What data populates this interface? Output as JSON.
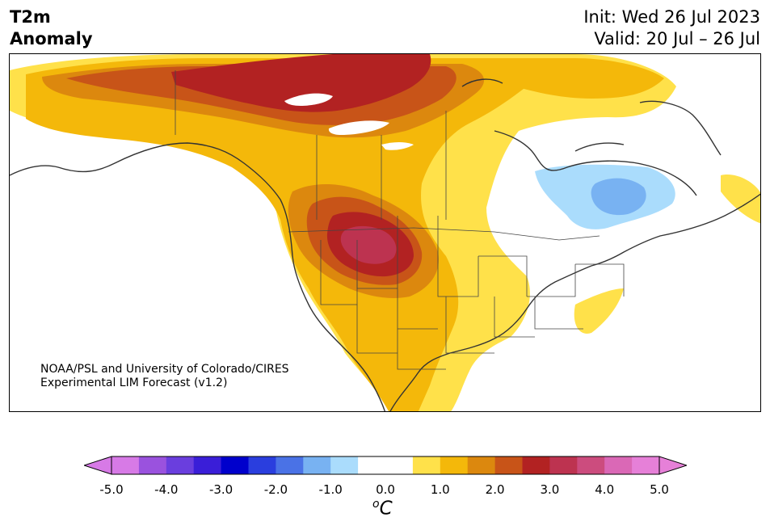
{
  "title": {
    "line1": "T2m",
    "line2": "Anomaly"
  },
  "init_label": "Init: Wed 26 Jul 2023",
  "valid_label": "Valid: 20 Jul – 26 Jul",
  "credit": {
    "line1": "NOAA/PSL and University of Colorado/CIRES",
    "line2": "Experimental LIM Forecast (v1.2)"
  },
  "colorbar": {
    "units_symbol": "o",
    "units_letter": "C",
    "ticks": [
      "-5.0",
      "-4.0",
      "-3.0",
      "-2.0",
      "-1.0",
      "0.0",
      "1.0",
      "2.0",
      "3.0",
      "4.0",
      "5.0"
    ],
    "colors": [
      "#d77ae6",
      "#9a52de",
      "#6a3ede",
      "#3a1ed8",
      "#0000cc",
      "#2a3ede",
      "#4a72e6",
      "#78b2f2",
      "#aadcfc",
      "#ffffff",
      "#ffffff",
      "#ffe14a",
      "#f4b80a",
      "#dc880e",
      "#c85418",
      "#b22222",
      "#bd3350",
      "#cc4c7e",
      "#da68b6",
      "#e680d8"
    ],
    "extend_low": "#d77ae6",
    "extend_high": "#e680d8"
  },
  "map_colors": {
    "land": "#ffffff",
    "anom_0_5": "#ffe14a",
    "anom_1_0": "#f4b80a",
    "anom_1_5": "#dc880e",
    "anom_2_0": "#c85418",
    "anom_2_5": "#b22222",
    "anom_3_0": "#bd3350",
    "cool_1": "#aadcfc",
    "cool_2": "#78b2f2",
    "coast": "#333333"
  }
}
